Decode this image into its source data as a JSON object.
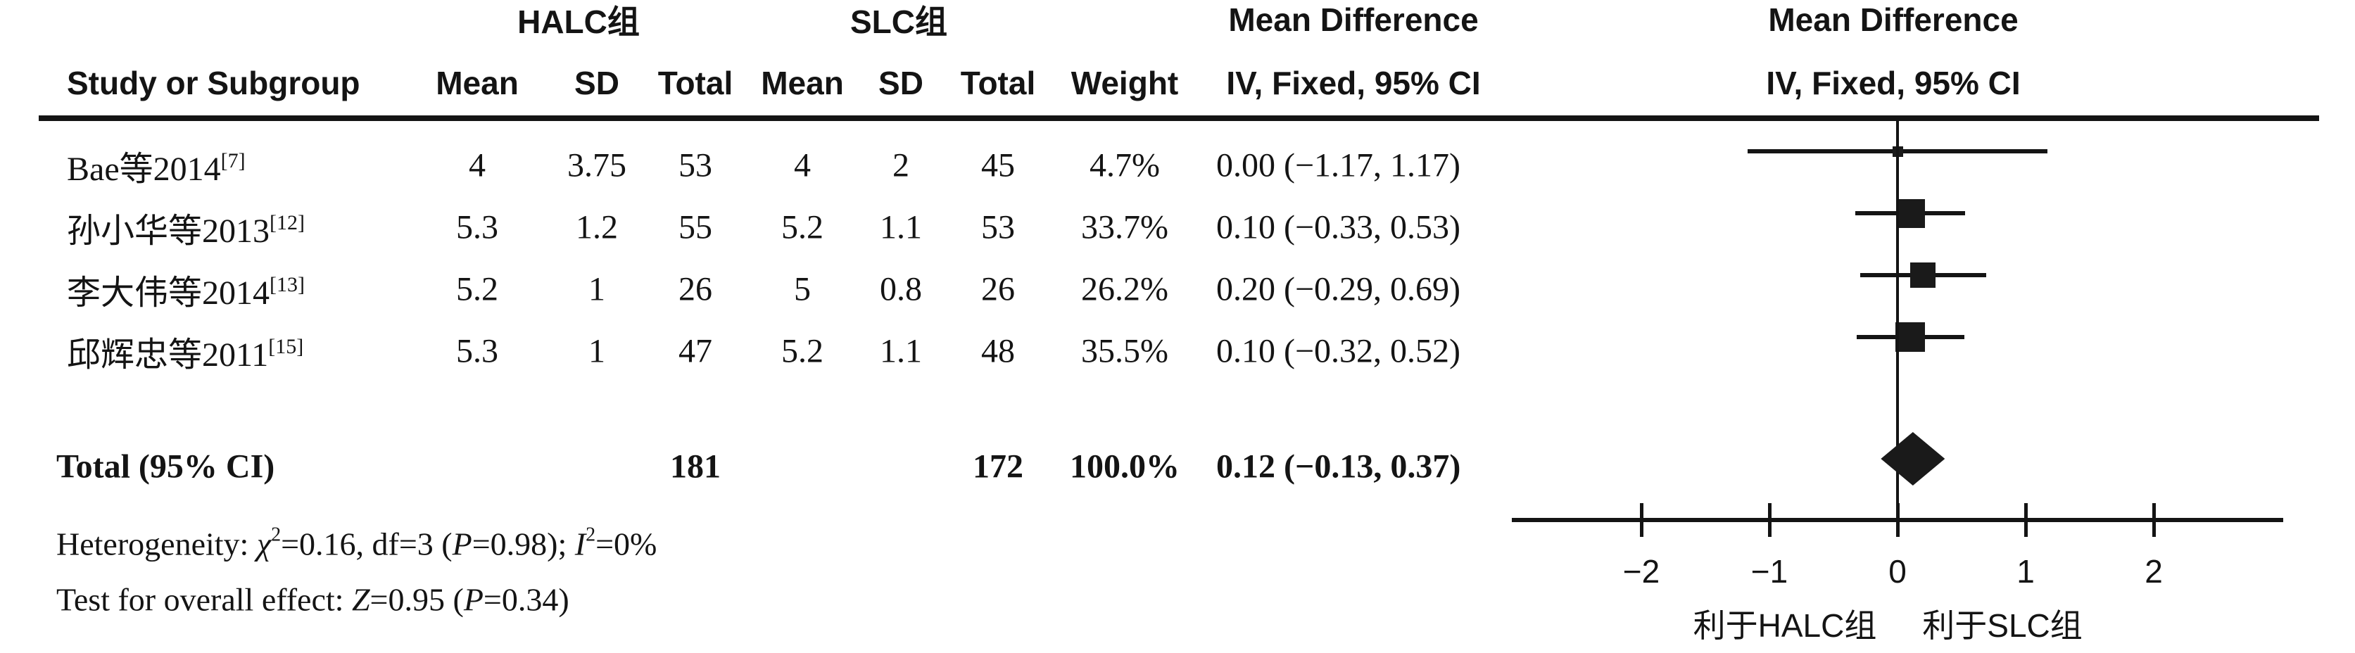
{
  "figure": {
    "group1_header": "HALC组",
    "group2_header": "SLC组",
    "md_header_table": "Mean Difference",
    "md_subheader_table": "IV, Fixed, 95% CI",
    "md_header_plot": "Mean Difference",
    "md_subheader_plot": "IV, Fixed, 95% CI",
    "col_study": "Study or Subgroup",
    "col_mean1": "Mean",
    "col_sd1": "SD",
    "col_total1": "Total",
    "col_mean2": "Mean",
    "col_sd2": "SD",
    "col_total2": "Total",
    "col_weight": "Weight",
    "total_label": "Total (95% CI)",
    "total_n1": "181",
    "total_n2": "172",
    "total_weight": "100.0%",
    "total_ci": "0.12 (−0.13, 0.37)",
    "het": {
      "prefix": "Heterogeneity: ",
      "chi": "χ",
      "chi_sup": "2",
      "seg1": "=0.16, df=3 (",
      "p": "P",
      "seg2": "=0.98); ",
      "i": "I",
      "i_sup": "2",
      "seg3": "=0%"
    },
    "test": {
      "prefix": "Test for overall effect: ",
      "z": "Z",
      "seg1": "=0.95 (",
      "p": "P",
      "seg2": "=0.34)"
    },
    "favours_left": "利于HALC组",
    "favours_right": "利于SLC组"
  },
  "chart_data": {
    "type": "forest",
    "effect_measure": "Mean Difference",
    "method": "IV, Fixed, 95% CI",
    "studies": [
      {
        "name": "Bae等2014",
        "ref": "[7]",
        "mean_e": "4",
        "sd_e": "3.75",
        "total_e": "53",
        "mean_c": "4",
        "sd_c": "2",
        "total_c": "45",
        "weight_label": "4.7%",
        "weight": 4.7,
        "ci_label": "0.00 (−1.17, 1.17)",
        "md": 0.0,
        "ci_low": -1.17,
        "ci_high": 1.17
      },
      {
        "name": "孙小华等2013",
        "ref": "[12]",
        "mean_e": "5.3",
        "sd_e": "1.2",
        "total_e": "55",
        "mean_c": "5.2",
        "sd_c": "1.1",
        "total_c": "53",
        "weight_label": "33.7%",
        "weight": 33.7,
        "ci_label": "0.10 (−0.33, 0.53)",
        "md": 0.1,
        "ci_low": -0.33,
        "ci_high": 0.53
      },
      {
        "name": "李大伟等2014",
        "ref": "[13]",
        "mean_e": "5.2",
        "sd_e": "1",
        "total_e": "26",
        "mean_c": "5",
        "sd_c": "0.8",
        "total_c": "26",
        "weight_label": "26.2%",
        "weight": 26.2,
        "ci_label": "0.20 (−0.29, 0.69)",
        "md": 0.2,
        "ci_low": -0.29,
        "ci_high": 0.69
      },
      {
        "name": "邱辉忠等2011",
        "ref": "[15]",
        "mean_e": "5.3",
        "sd_e": "1",
        "total_e": "47",
        "mean_c": "5.2",
        "sd_c": "1.1",
        "total_c": "48",
        "weight_label": "35.5%",
        "weight": 35.5,
        "ci_label": "0.10 (−0.32, 0.52)",
        "md": 0.1,
        "ci_low": -0.32,
        "ci_high": 0.52
      }
    ],
    "total": {
      "n_experimental": 181,
      "n_control": 172,
      "weight": 100.0,
      "md": 0.12,
      "ci_low": -0.13,
      "ci_high": 0.37
    },
    "heterogeneity": {
      "chi2": 0.16,
      "df": 3,
      "P": 0.98,
      "I2_percent": 0
    },
    "overall_effect": {
      "Z": 0.95,
      "P": 0.34
    },
    "axis": {
      "ticks": [
        -2,
        -1,
        0,
        1,
        2
      ],
      "xlim": [
        -3,
        3
      ]
    },
    "xlabel_left": "利于HALC组",
    "xlabel_right": "利于SLC组"
  }
}
